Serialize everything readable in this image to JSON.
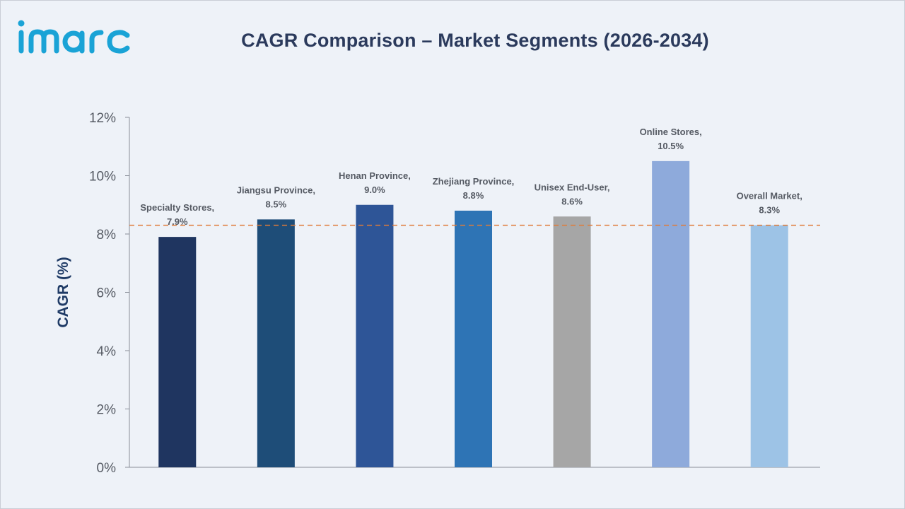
{
  "header": {
    "logo_text": "imarc",
    "title": "CAGR Comparison – Market Segments (2026-2034)"
  },
  "colors": {
    "background": "#eef2f8",
    "axis": "#8a8f99",
    "reference_line": "#e07b39",
    "logo": "#1aa3d6"
  },
  "chart_data": {
    "type": "bar",
    "title": "CAGR Comparison – Market Segments (2026-2034)",
    "xlabel": "",
    "ylabel": "CAGR (%)",
    "ylim": [
      0,
      12
    ],
    "y_ticks": [
      "0%",
      "2%",
      "4%",
      "6%",
      "8%",
      "10%",
      "12%"
    ],
    "y_tick_values": [
      0,
      2,
      4,
      6,
      8,
      10,
      12
    ],
    "grid": false,
    "legend": "none",
    "categories": [
      "Specialty Stores",
      "Jiangsu Province",
      "Henan Province",
      "Zhejiang Province",
      "Unisex End-User",
      "Online Stores",
      "Overall Market"
    ],
    "values": [
      7.9,
      8.5,
      9.0,
      8.8,
      8.6,
      10.5,
      8.3
    ],
    "data_labels": [
      [
        "Specialty Stores,",
        "7.9%"
      ],
      [
        "Jiangsu Province,",
        "8.5%"
      ],
      [
        "Henan Province,",
        "9.0%"
      ],
      [
        "Zhejiang Province,",
        "8.8%"
      ],
      [
        "Unisex End-User,",
        "8.6%"
      ],
      [
        "Online Stores,",
        "10.5%"
      ],
      [
        "Overall Market,",
        "8.3%"
      ]
    ],
    "bar_colors": [
      "#1f3560",
      "#1e4d78",
      "#2e5597",
      "#2e74b5",
      "#a6a6a6",
      "#8eaadb",
      "#9dc3e6"
    ],
    "reference_line": {
      "value": 8.3,
      "style": "dashed"
    }
  }
}
